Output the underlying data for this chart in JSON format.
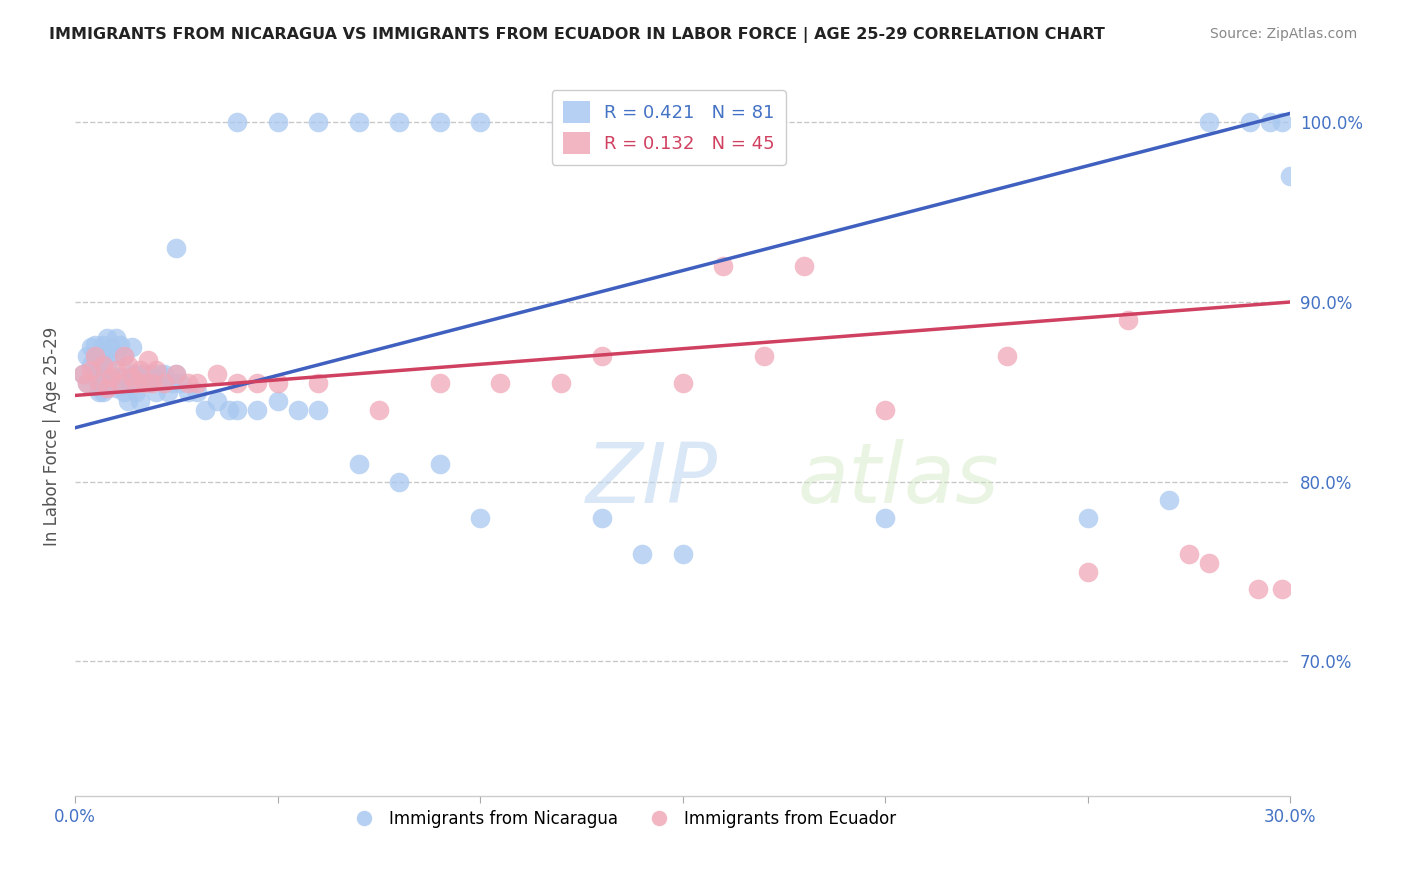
{
  "title": "IMMIGRANTS FROM NICARAGUA VS IMMIGRANTS FROM ECUADOR IN LABOR FORCE | AGE 25-29 CORRELATION CHART",
  "source": "Source: ZipAtlas.com",
  "ylabel": "In Labor Force | Age 25-29",
  "xlim": [
    0.0,
    0.3
  ],
  "ylim": [
    0.625,
    1.025
  ],
  "yticks_right": [
    0.7,
    0.8,
    0.9,
    1.0
  ],
  "ytick_labels_right": [
    "70.0%",
    "80.0%",
    "90.0%",
    "100.0%"
  ],
  "grid_color": "#c8c8c8",
  "background_color": "#ffffff",
  "nicaragua_color": "#a8c8f0",
  "ecuador_color": "#f0a8b8",
  "nicaragua_line_color": "#4060c0",
  "ecuador_line_color": "#d04060",
  "nicaragua_R": 0.421,
  "nicaragua_N": 81,
  "ecuador_R": 0.132,
  "ecuador_N": 45,
  "nicaragua_line_x": [
    0.0,
    0.3
  ],
  "nicaragua_line_y": [
    0.83,
    1.005
  ],
  "ecuador_line_x": [
    0.0,
    0.3
  ],
  "ecuador_line_y": [
    0.848,
    0.9
  ],
  "watermark": "ZIPatlas",
  "nic_x": [
    0.002,
    0.003,
    0.003,
    0.004,
    0.004,
    0.005,
    0.005,
    0.005,
    0.006,
    0.006,
    0.006,
    0.007,
    0.007,
    0.007,
    0.007,
    0.008,
    0.008,
    0.008,
    0.009,
    0.009,
    0.01,
    0.01,
    0.01,
    0.011,
    0.011,
    0.012,
    0.012,
    0.013,
    0.013,
    0.014,
    0.014,
    0.015,
    0.015,
    0.016,
    0.016,
    0.017,
    0.018,
    0.019,
    0.02,
    0.021,
    0.022,
    0.023,
    0.024,
    0.025,
    0.026,
    0.028,
    0.03,
    0.032,
    0.035,
    0.038,
    0.04,
    0.045,
    0.05,
    0.055,
    0.06,
    0.07,
    0.08,
    0.09,
    0.04,
    0.05,
    0.06,
    0.07,
    0.08,
    0.09,
    0.1,
    0.12,
    0.14,
    0.16,
    0.025,
    0.13,
    0.14,
    0.15,
    0.1,
    0.2,
    0.25,
    0.27,
    0.28,
    0.29,
    0.295,
    0.298,
    0.3
  ],
  "nic_y": [
    0.86,
    0.87,
    0.855,
    0.865,
    0.875,
    0.86,
    0.87,
    0.876,
    0.85,
    0.865,
    0.855,
    0.87,
    0.876,
    0.85,
    0.86,
    0.855,
    0.87,
    0.88,
    0.86,
    0.875,
    0.852,
    0.87,
    0.88,
    0.858,
    0.876,
    0.85,
    0.87,
    0.845,
    0.855,
    0.86,
    0.875,
    0.85,
    0.86,
    0.845,
    0.855,
    0.86,
    0.855,
    0.86,
    0.85,
    0.86,
    0.86,
    0.85,
    0.855,
    0.86,
    0.855,
    0.85,
    0.85,
    0.84,
    0.845,
    0.84,
    0.84,
    0.84,
    0.845,
    0.84,
    0.84,
    0.81,
    0.8,
    0.81,
    1.0,
    1.0,
    1.0,
    1.0,
    1.0,
    1.0,
    1.0,
    1.0,
    1.0,
    1.0,
    0.93,
    0.78,
    0.76,
    0.76,
    0.78,
    0.78,
    0.78,
    0.79,
    1.0,
    1.0,
    1.0,
    1.0,
    0.97
  ],
  "ecu_x": [
    0.002,
    0.003,
    0.004,
    0.005,
    0.006,
    0.007,
    0.008,
    0.009,
    0.01,
    0.011,
    0.012,
    0.013,
    0.014,
    0.015,
    0.016,
    0.017,
    0.018,
    0.019,
    0.02,
    0.022,
    0.025,
    0.028,
    0.03,
    0.035,
    0.04,
    0.045,
    0.05,
    0.06,
    0.075,
    0.09,
    0.105,
    0.12,
    0.15,
    0.16,
    0.18,
    0.23,
    0.26,
    0.13,
    0.17,
    0.2,
    0.25,
    0.275,
    0.28,
    0.292,
    0.298
  ],
  "ecu_y": [
    0.86,
    0.855,
    0.862,
    0.87,
    0.855,
    0.865,
    0.852,
    0.858,
    0.862,
    0.855,
    0.87,
    0.865,
    0.858,
    0.855,
    0.862,
    0.855,
    0.868,
    0.855,
    0.862,
    0.855,
    0.86,
    0.855,
    0.855,
    0.86,
    0.855,
    0.855,
    0.855,
    0.855,
    0.84,
    0.855,
    0.855,
    0.855,
    0.855,
    0.92,
    0.92,
    0.87,
    0.89,
    0.87,
    0.87,
    0.84,
    0.75,
    0.76,
    0.755,
    0.74,
    0.74
  ]
}
